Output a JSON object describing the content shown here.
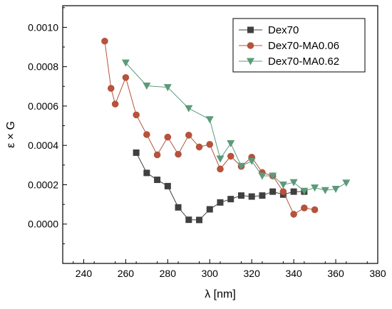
{
  "chart_data": {
    "type": "line",
    "xlabel": "λ [nm]",
    "ylabel": "ε × G",
    "xlim": [
      230,
      380
    ],
    "ylim": [
      -0.0002,
      0.00111
    ],
    "x_ticks": [
      240,
      260,
      280,
      300,
      320,
      340,
      360,
      380
    ],
    "y_ticks": [
      0.0,
      0.0002,
      0.0004,
      0.0006,
      0.0008,
      0.001
    ],
    "x_tick_labels": [
      "240",
      "260",
      "280",
      "300",
      "320",
      "340",
      "360",
      "380"
    ],
    "y_tick_labels": [
      "0.0000",
      "0.0002",
      "0.0004",
      "0.0006",
      "0.0008",
      "0.0010"
    ],
    "legend_position": "top-right",
    "grid": false,
    "series": [
      {
        "name": "Dex70",
        "color": "#404040",
        "marker": "square",
        "x": [
          265,
          270,
          275,
          280,
          285,
          290,
          295,
          300,
          305,
          310,
          315,
          320,
          325,
          330,
          335,
          340,
          345
        ],
        "y": [
          0.000363,
          0.00026,
          0.000225,
          0.000193,
          8.5e-05,
          2.2e-05,
          2.1e-05,
          7.5e-05,
          0.00011,
          0.000127,
          0.000145,
          0.00014,
          0.000145,
          0.000165,
          0.00015,
          0.000165,
          0.000165
        ]
      },
      {
        "name": "Dex70-MA0.06",
        "color": "#b5533c",
        "marker": "circle",
        "x": [
          250,
          253,
          255,
          260,
          265,
          270,
          275,
          280,
          285,
          290,
          295,
          300,
          305,
          310,
          315,
          320,
          325,
          330,
          335,
          340,
          345,
          350
        ],
        "y": [
          0.00093,
          0.00069,
          0.00061,
          0.000745,
          0.000555,
          0.000455,
          0.000352,
          0.000442,
          0.000355,
          0.000452,
          0.000392,
          0.000405,
          0.00028,
          0.000345,
          0.000293,
          0.00034,
          0.000262,
          0.000245,
          0.000165,
          5e-05,
          8.2e-05,
          7.3e-05
        ]
      },
      {
        "name": "Dex70-MA0.62",
        "color": "#5c9a7a",
        "marker": "triangle-down",
        "x": [
          260,
          270,
          280,
          290,
          300,
          305,
          310,
          315,
          320,
          325,
          330,
          335,
          340,
          345,
          350,
          355,
          360,
          365
        ],
        "y": [
          0.00082,
          0.000703,
          0.000695,
          0.000588,
          0.000532,
          0.000332,
          0.00041,
          0.000295,
          0.00032,
          0.000245,
          0.000245,
          0.0002,
          0.000212,
          0.000168,
          0.000185,
          0.000172,
          0.000178,
          0.00021
        ]
      }
    ]
  }
}
